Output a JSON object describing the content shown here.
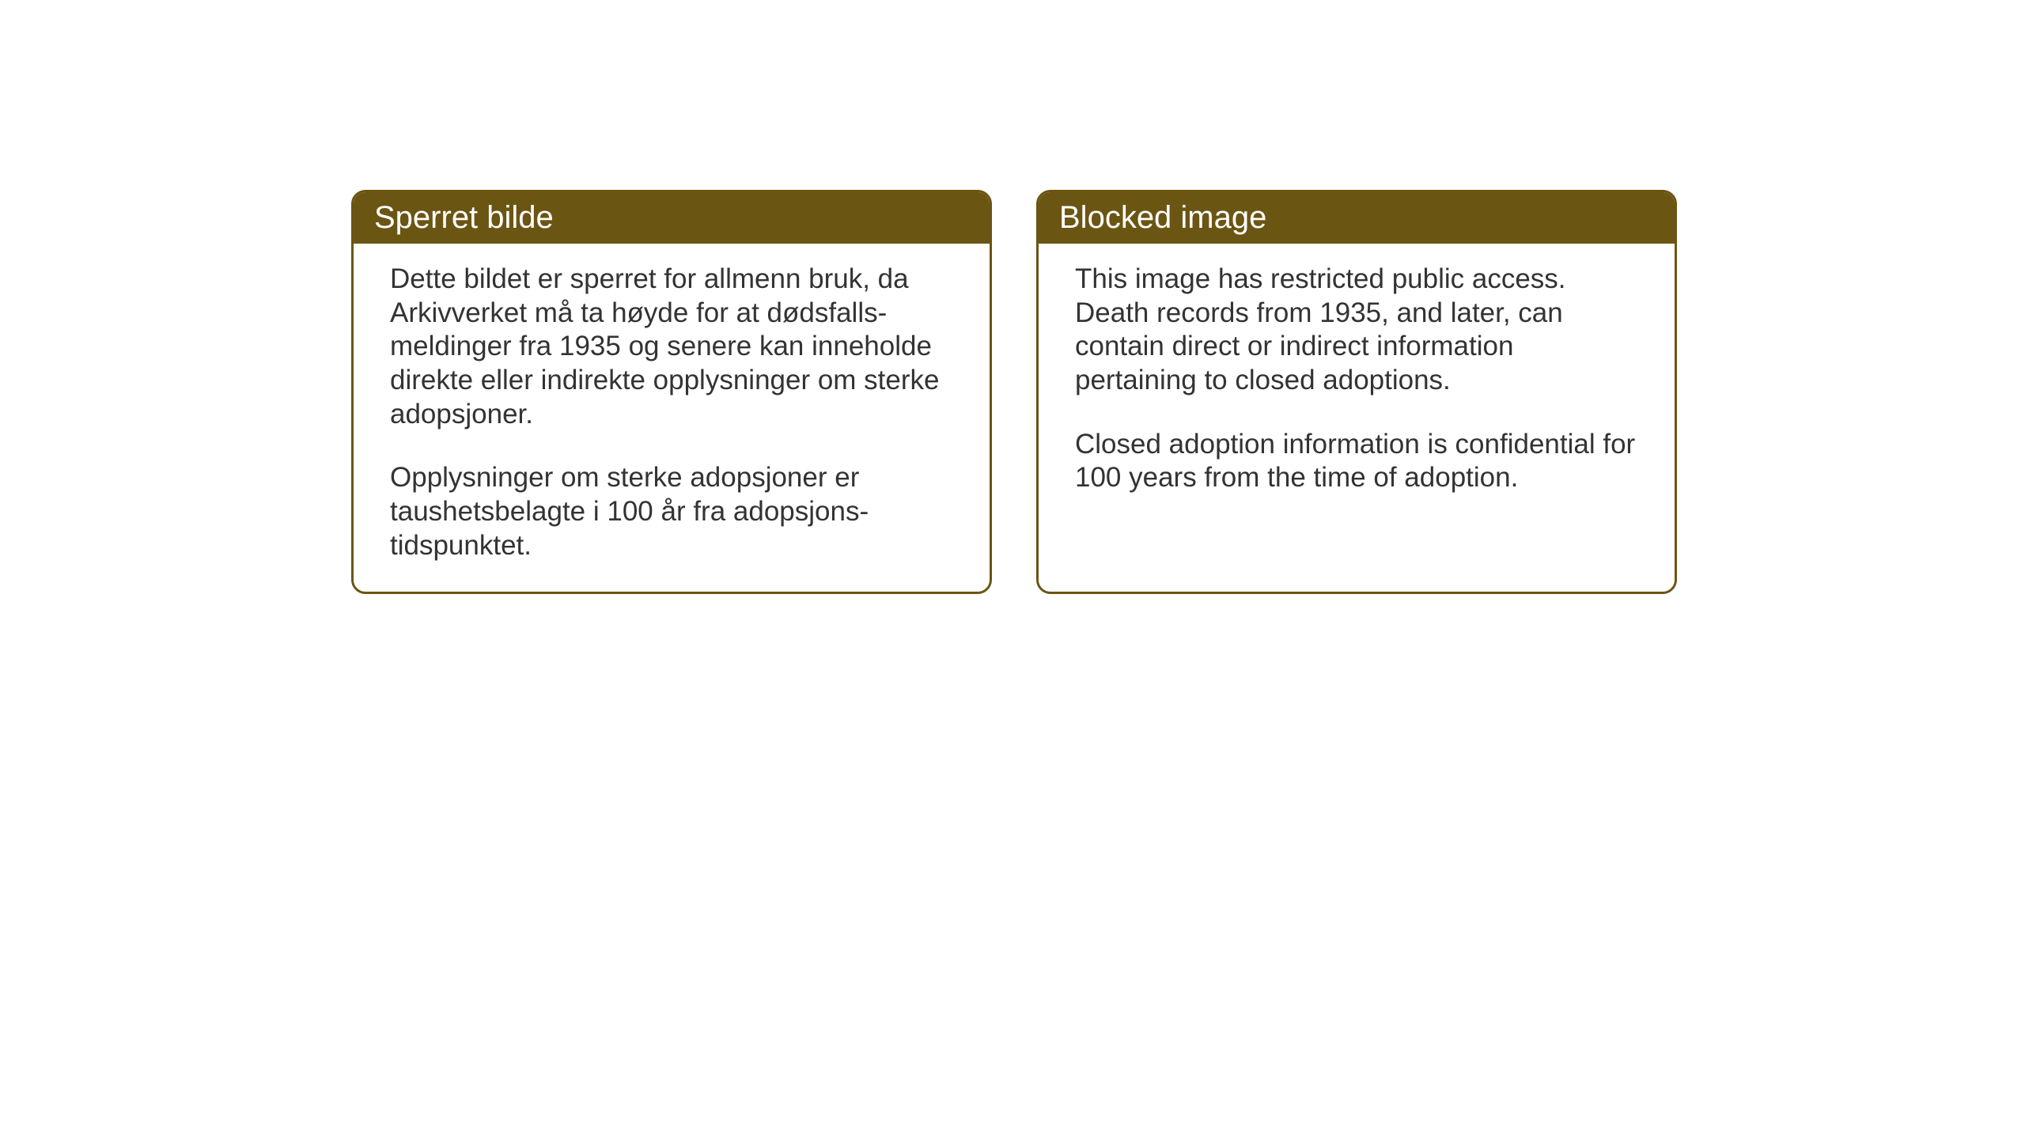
{
  "cards": {
    "left": {
      "title": "Sperret bilde",
      "paragraph1": "Dette bildet er sperret for allmenn bruk, da Arkivverket må ta høyde for at dødsfalls-meldinger fra 1935 og senere kan inneholde direkte eller indirekte opplysninger om sterke adopsjoner.",
      "paragraph2": "Opplysninger om sterke adopsjoner er taushetsbelagte i 100 år fra adopsjons-tidspunktet."
    },
    "right": {
      "title": "Blocked image",
      "paragraph1": "This image has restricted public access. Death records from 1935, and later, can contain direct or indirect information pertaining to closed adoptions.",
      "paragraph2": "Closed adoption information is confidential for 100 years from the time of adoption."
    }
  },
  "styling": {
    "header_background": "#6b5513",
    "header_text_color": "#ffffff",
    "border_color": "#6b5513",
    "body_background": "#ffffff",
    "body_text_color": "#333333",
    "title_fontsize": 40,
    "body_fontsize": 35,
    "border_radius": 18,
    "border_width": 3
  }
}
